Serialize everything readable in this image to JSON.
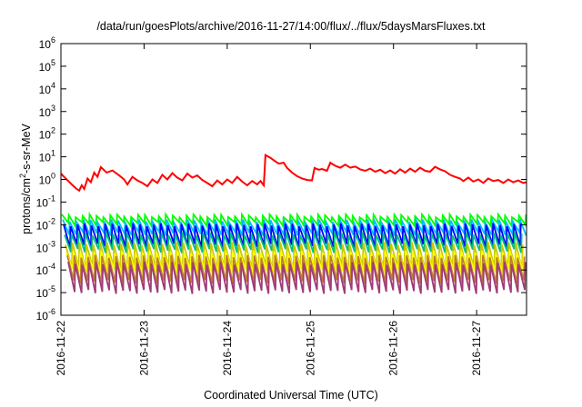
{
  "chart_data": {
    "type": "line",
    "title": "/data/run/goesPlots/archive/2016-11-27/14:00/flux/../flux/5daysMarsFluxes.txt",
    "xlabel": "Coordinated Universal Time (UTC)",
    "ylabel": {
      "pre": "protons/cm",
      "sup": "2",
      "post": "-s-sr-MeV"
    },
    "x_ticks": [
      "2016-11-22",
      "2016-11-23",
      "2016-11-24",
      "2016-11-25",
      "2016-11-26",
      "2016-11-27"
    ],
    "x_range_days": [
      0,
      5.6
    ],
    "y_scale": "log",
    "ylim": [
      1e-06,
      1000000.0
    ],
    "y_ticks": [
      {
        "base": "10",
        "exp": "-6"
      },
      {
        "base": "10",
        "exp": "-5"
      },
      {
        "base": "10",
        "exp": "-4"
      },
      {
        "base": "10",
        "exp": "-3"
      },
      {
        "base": "10",
        "exp": "-2"
      },
      {
        "base": "10",
        "exp": "-1"
      },
      {
        "base": "10",
        "exp": "0"
      },
      {
        "base": "10",
        "exp": "1"
      },
      {
        "base": "10",
        "exp": "2"
      },
      {
        "base": "10",
        "exp": "3"
      },
      {
        "base": "10",
        "exp": "4"
      },
      {
        "base": "10",
        "exp": "5"
      },
      {
        "base": "10",
        "exp": "6"
      }
    ],
    "grid": false,
    "series": [
      {
        "color": "#ff0000",
        "points": [
          [
            0.0,
            1.8
          ],
          [
            0.03,
            1.4
          ],
          [
            0.08,
            0.9
          ],
          [
            0.13,
            0.6
          ],
          [
            0.18,
            0.4
          ],
          [
            0.22,
            0.32
          ],
          [
            0.25,
            0.55
          ],
          [
            0.28,
            0.38
          ],
          [
            0.32,
            1.1
          ],
          [
            0.36,
            0.75
          ],
          [
            0.4,
            2.0
          ],
          [
            0.44,
            1.3
          ],
          [
            0.48,
            3.5
          ],
          [
            0.55,
            2.0
          ],
          [
            0.62,
            2.5
          ],
          [
            0.7,
            1.5
          ],
          [
            0.76,
            1.0
          ],
          [
            0.8,
            0.6
          ],
          [
            0.86,
            1.3
          ],
          [
            0.92,
            0.9
          ],
          [
            0.98,
            0.7
          ],
          [
            1.04,
            0.5
          ],
          [
            1.1,
            1.0
          ],
          [
            1.16,
            0.7
          ],
          [
            1.22,
            1.6
          ],
          [
            1.28,
            1.0
          ],
          [
            1.34,
            1.9
          ],
          [
            1.4,
            1.2
          ],
          [
            1.46,
            0.9
          ],
          [
            1.52,
            1.8
          ],
          [
            1.58,
            1.2
          ],
          [
            1.64,
            1.5
          ],
          [
            1.7,
            0.95
          ],
          [
            1.76,
            0.7
          ],
          [
            1.82,
            0.5
          ],
          [
            1.88,
            0.9
          ],
          [
            1.94,
            0.6
          ],
          [
            2.0,
            1.0
          ],
          [
            2.06,
            0.7
          ],
          [
            2.12,
            1.3
          ],
          [
            2.18,
            0.8
          ],
          [
            2.24,
            0.55
          ],
          [
            2.3,
            0.85
          ],
          [
            2.36,
            0.6
          ],
          [
            2.4,
            0.85
          ],
          [
            2.44,
            0.55
          ],
          [
            2.46,
            12.0
          ],
          [
            2.52,
            9.0
          ],
          [
            2.56,
            7.0
          ],
          [
            2.62,
            5.0
          ],
          [
            2.68,
            5.5
          ],
          [
            2.72,
            3.2
          ],
          [
            2.78,
            2.0
          ],
          [
            2.84,
            1.4
          ],
          [
            2.9,
            1.1
          ],
          [
            2.96,
            0.95
          ],
          [
            3.02,
            0.9
          ],
          [
            3.05,
            3.2
          ],
          [
            3.1,
            2.7
          ],
          [
            3.14,
            2.9
          ],
          [
            3.2,
            2.4
          ],
          [
            3.24,
            5.5
          ],
          [
            3.3,
            4.0
          ],
          [
            3.36,
            3.3
          ],
          [
            3.42,
            4.5
          ],
          [
            3.48,
            3.3
          ],
          [
            3.54,
            3.7
          ],
          [
            3.6,
            2.8
          ],
          [
            3.66,
            2.4
          ],
          [
            3.72,
            3.0
          ],
          [
            3.78,
            2.2
          ],
          [
            3.84,
            2.7
          ],
          [
            3.9,
            1.9
          ],
          [
            3.96,
            2.5
          ],
          [
            4.02,
            1.8
          ],
          [
            4.08,
            2.8
          ],
          [
            4.14,
            2.0
          ],
          [
            4.2,
            3.0
          ],
          [
            4.26,
            2.2
          ],
          [
            4.32,
            3.3
          ],
          [
            4.38,
            2.4
          ],
          [
            4.44,
            2.2
          ],
          [
            4.5,
            3.6
          ],
          [
            4.56,
            2.8
          ],
          [
            4.62,
            2.3
          ],
          [
            4.68,
            1.6
          ],
          [
            4.74,
            1.3
          ],
          [
            4.8,
            1.1
          ],
          [
            4.84,
            0.85
          ],
          [
            4.9,
            1.2
          ],
          [
            4.96,
            0.8
          ],
          [
            5.02,
            1.0
          ],
          [
            5.08,
            0.7
          ],
          [
            5.14,
            1.1
          ],
          [
            5.2,
            0.85
          ],
          [
            5.26,
            0.95
          ],
          [
            5.32,
            0.7
          ],
          [
            5.38,
            1.0
          ],
          [
            5.44,
            0.75
          ],
          [
            5.5,
            0.9
          ],
          [
            5.56,
            0.7
          ],
          [
            5.6,
            0.75
          ]
        ]
      },
      {
        "color": "#00ff00",
        "period": 0.0833,
        "peak": 0.025,
        "trough": 0.011
      },
      {
        "color": "#00bfff",
        "period": 0.0833,
        "peak": 0.015,
        "trough": 0.004
      },
      {
        "color": "#0000ff",
        "period": 0.0833,
        "peak": 0.01,
        "trough": 0.0012
      },
      {
        "color": "#00c080",
        "period": 0.0833,
        "peak": 0.004,
        "trough": 0.0007
      },
      {
        "color": "#c8c800",
        "period": 0.0833,
        "peak": 0.0015,
        "trough": 0.00012
      },
      {
        "color": "#ffff00",
        "period": 0.0833,
        "peak": 0.0006,
        "trough": 9e-05
      },
      {
        "color": "#c08030",
        "period": 0.0833,
        "peak": 0.0004,
        "trough": 3e-05
      },
      {
        "color": "#a03c78",
        "period": 0.0833,
        "peak": 0.0002,
        "trough": 1.1e-05
      }
    ]
  }
}
